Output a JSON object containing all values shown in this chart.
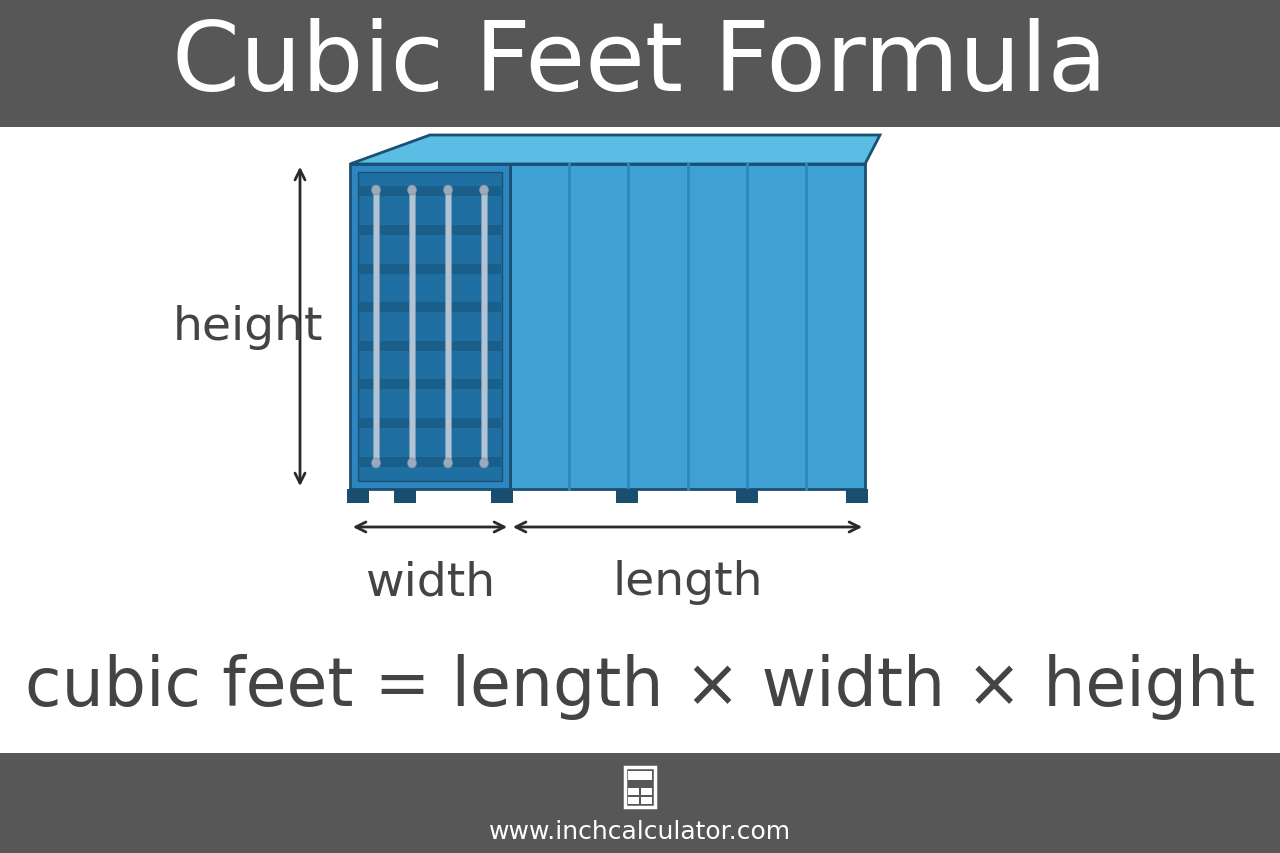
{
  "title": "Cubic Feet Formula",
  "title_bg_color": "#575757",
  "title_text_color": "#ffffff",
  "footer_bg_color": "#575757",
  "footer_text_color": "#ffffff",
  "main_bg_color": "#ffffff",
  "formula_text": "cubic feet = length × width × height",
  "formula_color": "#444444",
  "website": "www.inchcalculator.com",
  "label_color": "#444444",
  "arrow_color": "#2a2a2a",
  "container_front_face": "#2e86c1",
  "container_front_inner": "#1f6fa3",
  "container_front_dark_stripe": "#1a5f8a",
  "container_side_face": "#3fa0d4",
  "container_side_dark": "#2e86c1",
  "container_top_face": "#5bbde4",
  "container_edge_color": "#1a5073",
  "hinge_color": "#b0c4d8",
  "foot_color": "#1a4e6e"
}
